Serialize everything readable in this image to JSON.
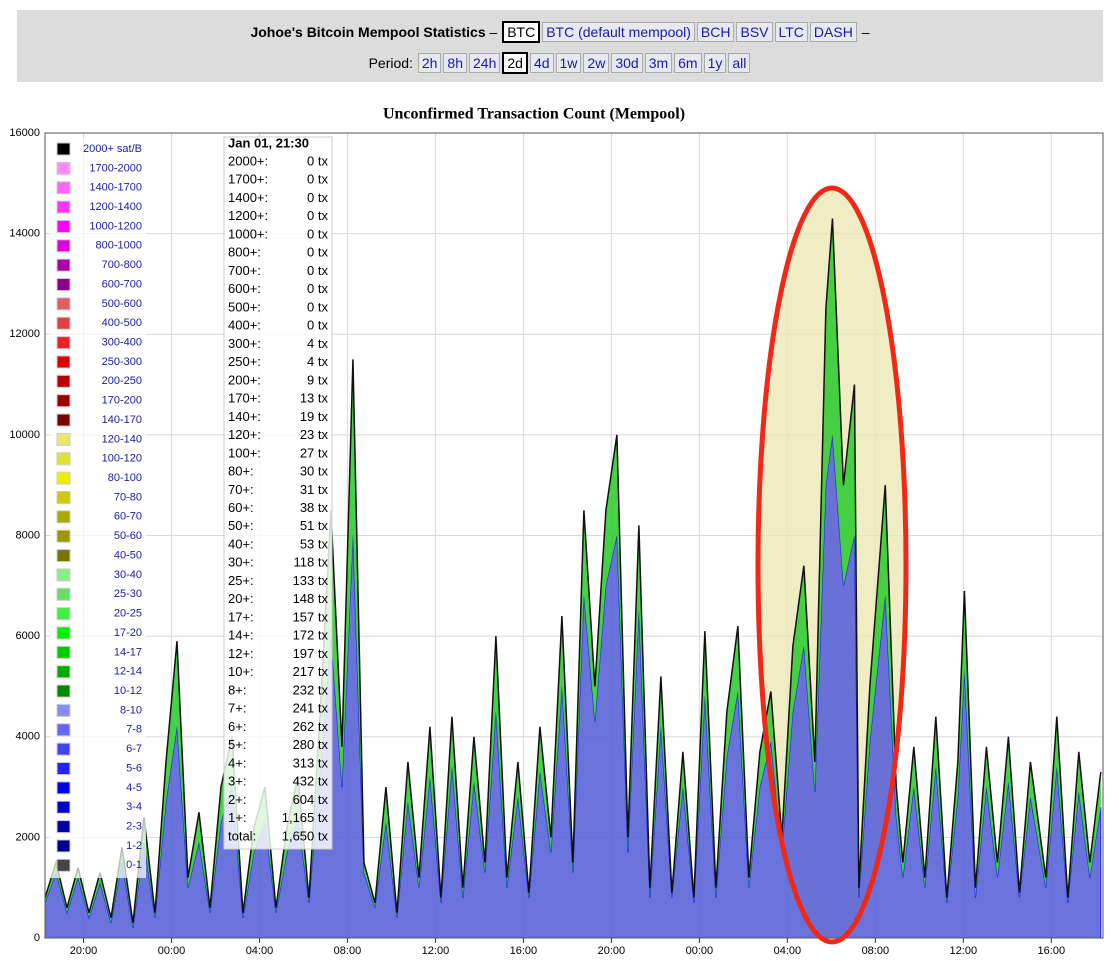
{
  "header": {
    "title": "Johoe's Bitcoin Mempool Statistics",
    "separator": "–",
    "coins": [
      {
        "label": "BTC",
        "selected": true
      },
      {
        "label": "BTC (default mempool)",
        "selected": false
      },
      {
        "label": "BCH",
        "selected": false
      },
      {
        "label": "BSV",
        "selected": false
      },
      {
        "label": "LTC",
        "selected": false
      },
      {
        "label": "DASH",
        "selected": false
      }
    ],
    "period_label": "Period:",
    "periods": [
      {
        "label": "2h",
        "selected": false
      },
      {
        "label": "8h",
        "selected": false
      },
      {
        "label": "24h",
        "selected": false
      },
      {
        "label": "2d",
        "selected": true
      },
      {
        "label": "4d",
        "selected": false
      },
      {
        "label": "1w",
        "selected": false
      },
      {
        "label": "2w",
        "selected": false
      },
      {
        "label": "30d",
        "selected": false
      },
      {
        "label": "3m",
        "selected": false
      },
      {
        "label": "6m",
        "selected": false
      },
      {
        "label": "1y",
        "selected": false
      },
      {
        "label": "all",
        "selected": false
      }
    ]
  },
  "chart_data": {
    "type": "stacked_area",
    "title": "Unconfirmed Transaction Count (Mempool)",
    "xlim": [
      0,
      48.1
    ],
    "xticks": [
      {
        "value": 1.75,
        "label": "20:00"
      },
      {
        "value": 5.75,
        "label": "00:00"
      },
      {
        "value": 9.75,
        "label": "04:00"
      },
      {
        "value": 13.75,
        "label": "08:00"
      },
      {
        "value": 17.75,
        "label": "12:00"
      },
      {
        "value": 21.75,
        "label": "16:00"
      },
      {
        "value": 25.75,
        "label": "20:00"
      },
      {
        "value": 29.75,
        "label": "00:00"
      },
      {
        "value": 33.75,
        "label": "04:00"
      },
      {
        "value": 37.75,
        "label": "08:00"
      },
      {
        "value": 41.75,
        "label": "12:00"
      },
      {
        "value": 45.75,
        "label": "16:00"
      }
    ],
    "ylim": [
      0,
      16000
    ],
    "yticks": [
      0,
      2000,
      4000,
      6000,
      8000,
      10000,
      12000,
      14000,
      16000
    ],
    "grid": true,
    "x": [
      0,
      0.5,
      1,
      1.5,
      2,
      2.5,
      3,
      3.5,
      4,
      4.5,
      5,
      5.5,
      6,
      6.5,
      7,
      7.5,
      8,
      8.5,
      9,
      9.5,
      10,
      10.5,
      11,
      11.5,
      12,
      12.5,
      13,
      13.5,
      14,
      14.5,
      15,
      15.5,
      16,
      16.5,
      17,
      17.5,
      18,
      18.5,
      19,
      19.5,
      20,
      20.5,
      21,
      21.5,
      22,
      22.5,
      23,
      23.5,
      24,
      24.5,
      25,
      25.5,
      26,
      26.5,
      27,
      27.5,
      28,
      28.5,
      29,
      29.5,
      30,
      30.5,
      31,
      31.5,
      32,
      32.5,
      33,
      33.5,
      34,
      34.5,
      35,
      35.5,
      35.8,
      36.3,
      36.8,
      37,
      37.5,
      38.2,
      38.7,
      39,
      39.5,
      40,
      40.5,
      41,
      41.5,
      41.8,
      42.3,
      42.8,
      43.3,
      43.8,
      44.3,
      44.8,
      45.5,
      46,
      46.5,
      47,
      47.5,
      48
    ],
    "series": [
      {
        "color": "#5a63d8",
        "values": [
          700,
          1300,
          500,
          1200,
          400,
          1100,
          300,
          1500,
          200,
          1900,
          400,
          2700,
          4200,
          1000,
          1900,
          500,
          2300,
          3000,
          400,
          1700,
          2300,
          500,
          1700,
          2400,
          700,
          3300,
          6000,
          3000,
          8000,
          1300,
          600,
          2300,
          400,
          2700,
          1000,
          3200,
          700,
          3400,
          800,
          3100,
          1300,
          4500,
          1000,
          2800,
          800,
          3300,
          1700,
          5000,
          1300,
          6800,
          4300,
          7000,
          8000,
          1700,
          6500,
          800,
          4200,
          800,
          3000,
          700,
          4800,
          800,
          3600,
          4900,
          1000,
          3000,
          3900,
          1700,
          4500,
          5800,
          2900,
          9000,
          10000,
          7000,
          8000,
          800,
          3900,
          6800,
          2400,
          1200,
          3000,
          1000,
          3400,
          700,
          2800,
          5300,
          800,
          3000,
          1200,
          3100,
          800,
          2800,
          1000,
          3400,
          700,
          2900,
          1200,
          2600
        ]
      },
      {
        "color": "#33cc33",
        "values": [
          100,
          200,
          100,
          200,
          100,
          200,
          100,
          300,
          100,
          500,
          100,
          800,
          1700,
          200,
          600,
          100,
          700,
          1000,
          100,
          500,
          700,
          100,
          500,
          800,
          100,
          1100,
          2500,
          800,
          3500,
          200,
          100,
          700,
          100,
          800,
          200,
          1000,
          100,
          1000,
          200,
          900,
          200,
          1500,
          200,
          700,
          100,
          900,
          300,
          1400,
          200,
          1700,
          700,
          1500,
          2000,
          300,
          1700,
          200,
          1000,
          100,
          700,
          100,
          1300,
          200,
          900,
          1300,
          200,
          700,
          1000,
          300,
          1300,
          1600,
          600,
          3500,
          4300,
          2000,
          3000,
          200,
          1100,
          2200,
          600,
          300,
          800,
          200,
          1000,
          100,
          700,
          1600,
          200,
          800,
          300,
          900,
          100,
          700,
          200,
          1000,
          100,
          800,
          300,
          700
        ]
      }
    ],
    "legend": [
      {
        "label": "2000+ sat/B",
        "color": "#000000"
      },
      {
        "label": "1700-2000",
        "color": "#ff88ff"
      },
      {
        "label": "1400-1700",
        "color": "#ff66ff"
      },
      {
        "label": "1200-1400",
        "color": "#ff33ff"
      },
      {
        "label": "1000-1200",
        "color": "#ff00ff"
      },
      {
        "label": "800-1000",
        "color": "#dd00dd"
      },
      {
        "label": "700-800",
        "color": "#aa00aa"
      },
      {
        "label": "600-700",
        "color": "#880088"
      },
      {
        "label": "500-600",
        "color": "#e06060"
      },
      {
        "label": "400-500",
        "color": "#e04040"
      },
      {
        "label": "300-400",
        "color": "#ee2020"
      },
      {
        "label": "250-300",
        "color": "#dd0000"
      },
      {
        "label": "200-250",
        "color": "#bb0000"
      },
      {
        "label": "170-200",
        "color": "#990000"
      },
      {
        "label": "140-170",
        "color": "#770000"
      },
      {
        "label": "120-140",
        "color": "#e8e870"
      },
      {
        "label": "100-120",
        "color": "#e0e030"
      },
      {
        "label": "80-100",
        "color": "#eeee00"
      },
      {
        "label": "70-80",
        "color": "#cccc00"
      },
      {
        "label": "60-70",
        "color": "#aaaa00"
      },
      {
        "label": "50-60",
        "color": "#999900"
      },
      {
        "label": "40-50",
        "color": "#777700"
      },
      {
        "label": "30-40",
        "color": "#88ee88"
      },
      {
        "label": "25-30",
        "color": "#66dd66"
      },
      {
        "label": "20-25",
        "color": "#44ee44"
      },
      {
        "label": "17-20",
        "color": "#00ee00"
      },
      {
        "label": "14-17",
        "color": "#00cc00"
      },
      {
        "label": "12-14",
        "color": "#00aa00"
      },
      {
        "label": "10-12",
        "color": "#008800"
      },
      {
        "label": "8-10",
        "color": "#8888ff"
      },
      {
        "label": "7-8",
        "color": "#6666ff"
      },
      {
        "label": "6-7",
        "color": "#4444ff"
      },
      {
        "label": "5-6",
        "color": "#2222ff"
      },
      {
        "label": "4-5",
        "color": "#0000ee"
      },
      {
        "label": "3-4",
        "color": "#0000cc"
      },
      {
        "label": "2-3",
        "color": "#0000aa"
      },
      {
        "label": "1-2",
        "color": "#000088"
      },
      {
        "label": "0-1",
        "color": "#444444"
      }
    ],
    "tooltip": {
      "header": "Jan 01, 21:30",
      "rows": [
        [
          "2000+:",
          "0 tx"
        ],
        [
          "1700+:",
          "0 tx"
        ],
        [
          "1400+:",
          "0 tx"
        ],
        [
          "1200+:",
          "0 tx"
        ],
        [
          "1000+:",
          "0 tx"
        ],
        [
          "800+:",
          "0 tx"
        ],
        [
          "700+:",
          "0 tx"
        ],
        [
          "600+:",
          "0 tx"
        ],
        [
          "500+:",
          "0 tx"
        ],
        [
          "400+:",
          "0 tx"
        ],
        [
          "300+:",
          "4 tx"
        ],
        [
          "250+:",
          "4 tx"
        ],
        [
          "200+:",
          "9 tx"
        ],
        [
          "170+:",
          "13 tx"
        ],
        [
          "140+:",
          "19 tx"
        ],
        [
          "120+:",
          "23 tx"
        ],
        [
          "100+:",
          "27 tx"
        ],
        [
          "80+:",
          "30 tx"
        ],
        [
          "70+:",
          "31 tx"
        ],
        [
          "60+:",
          "38 tx"
        ],
        [
          "50+:",
          "51 tx"
        ],
        [
          "40+:",
          "53 tx"
        ],
        [
          "30+:",
          "118 tx"
        ],
        [
          "25+:",
          "133 tx"
        ],
        [
          "20+:",
          "148 tx"
        ],
        [
          "17+:",
          "157 tx"
        ],
        [
          "14+:",
          "172 tx"
        ],
        [
          "12+:",
          "197 tx"
        ],
        [
          "10+:",
          "217 tx"
        ],
        [
          "8+:",
          "232 tx"
        ],
        [
          "7+:",
          "241 tx"
        ],
        [
          "6+:",
          "262 tx"
        ],
        [
          "5+:",
          "280 tx"
        ],
        [
          "4+:",
          "313 tx"
        ],
        [
          "3+:",
          "432 tx"
        ],
        [
          "2+:",
          "604 tx"
        ],
        [
          "1+:",
          "1,165 tx"
        ],
        [
          "total:",
          "1,650 tx"
        ]
      ]
    }
  }
}
